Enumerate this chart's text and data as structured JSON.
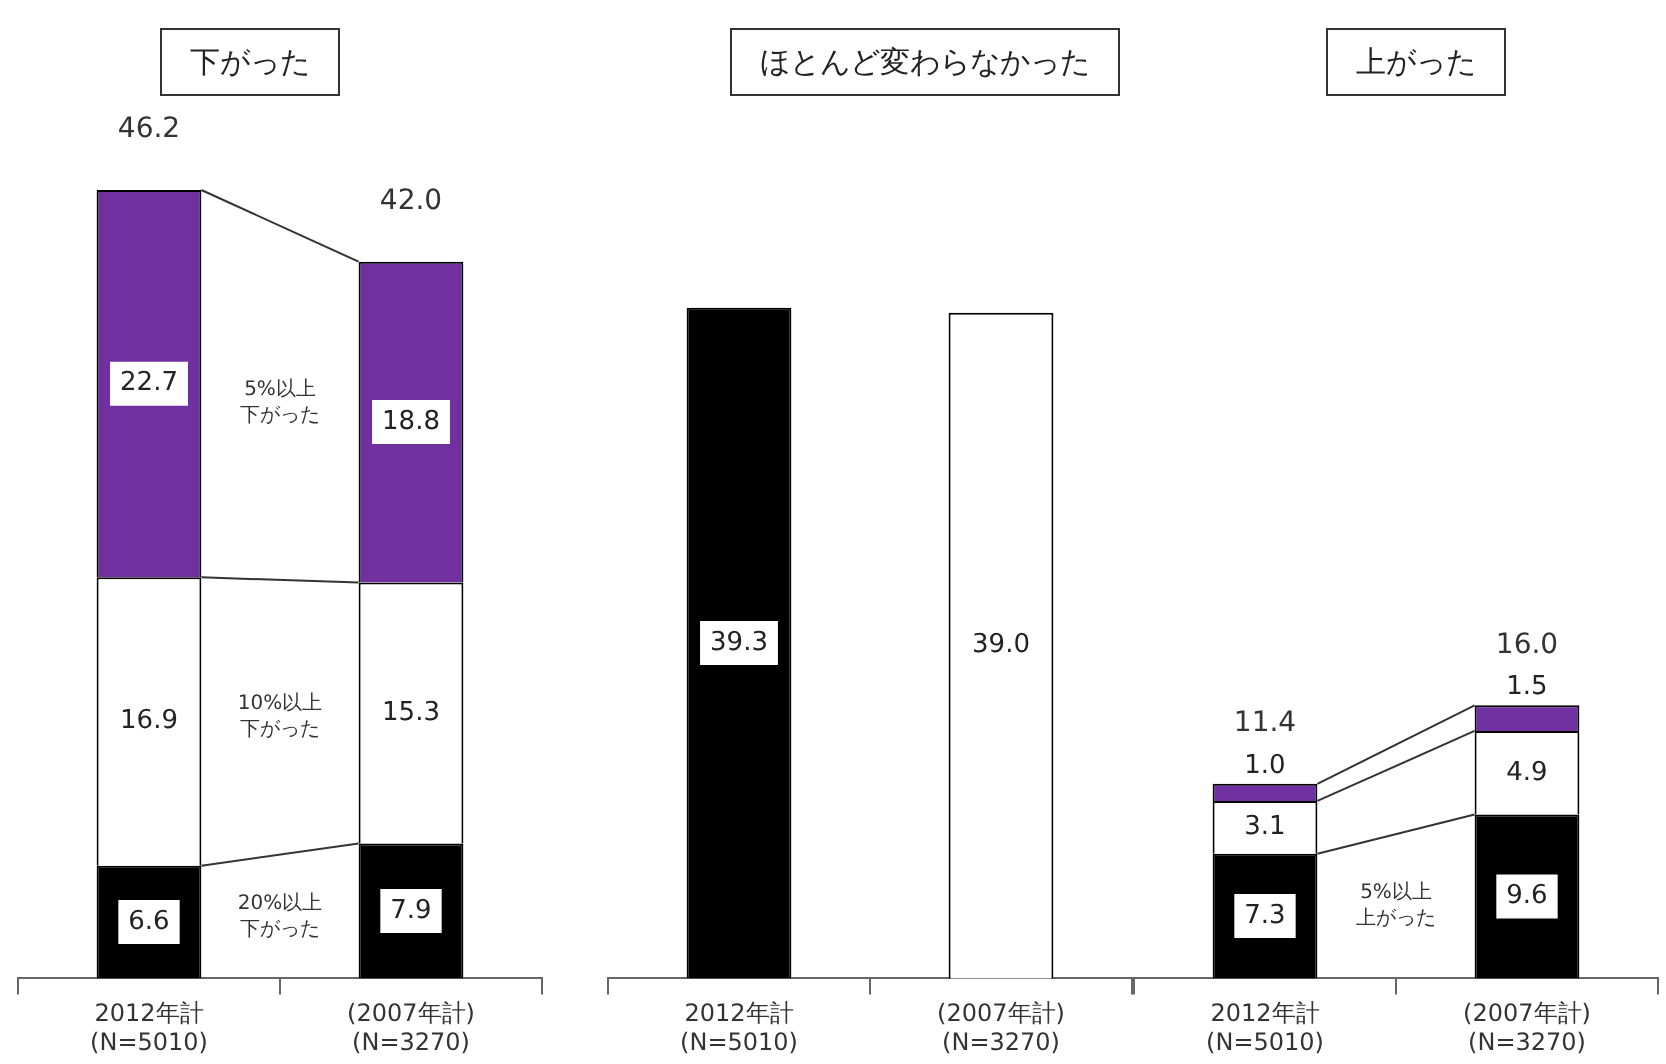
{
  "chart_data": [
    {
      "type": "bar",
      "title": "下がった",
      "categories": [
        "2012年計\n(N=5010)",
        "(2007年計)\n(N=3270)"
      ],
      "stacked": true,
      "tick_labels": "x",
      "totals": [
        "46.2",
        "42.0"
      ],
      "series": [
        {
          "name": "20%以上下がった",
          "color": "#000000",
          "values": [
            6.6,
            7.9
          ],
          "value_labels": [
            "6.6",
            "7.9"
          ]
        },
        {
          "name": "10%以上下がった",
          "color": "#ffffff",
          "values": [
            16.9,
            15.3
          ],
          "value_labels": [
            "16.9",
            "15.3"
          ]
        },
        {
          "name": "5%以上下がった",
          "color": "#7030a0",
          "values": [
            22.7,
            18.8
          ],
          "value_labels": [
            "22.7",
            "18.8"
          ]
        }
      ]
    },
    {
      "type": "bar",
      "title": "ほとんど変わらなかった",
      "categories": [
        "2012年計\n(N=5010)",
        "(2007年計)\n(N=3270)"
      ],
      "tick_labels": "x",
      "series": [
        {
          "colors": [
            "#000000",
            "#ffffff"
          ],
          "values": [
            39.3,
            39.0
          ],
          "value_labels": [
            "39.3",
            "39.0"
          ]
        }
      ]
    },
    {
      "type": "bar",
      "title": "上がった",
      "categories": [
        "2012年計\n(N=5010)",
        "(2007年計)\n(N=3270)"
      ],
      "stacked": true,
      "tick_labels": "x",
      "totals": [
        "11.4",
        "16.0"
      ],
      "series": [
        {
          "name": "5%以上上がった",
          "color": "#000000",
          "values": [
            7.3,
            9.6
          ],
          "value_labels": [
            "7.3",
            "9.6"
          ]
        },
        {
          "color": "#ffffff",
          "values": [
            3.1,
            4.9
          ],
          "value_labels": [
            "3.1",
            "4.9"
          ]
        },
        {
          "color": "#7030a0",
          "values": [
            1.0,
            1.5
          ],
          "value_labels": [
            "1.0",
            "1.5"
          ]
        }
      ]
    }
  ]
}
